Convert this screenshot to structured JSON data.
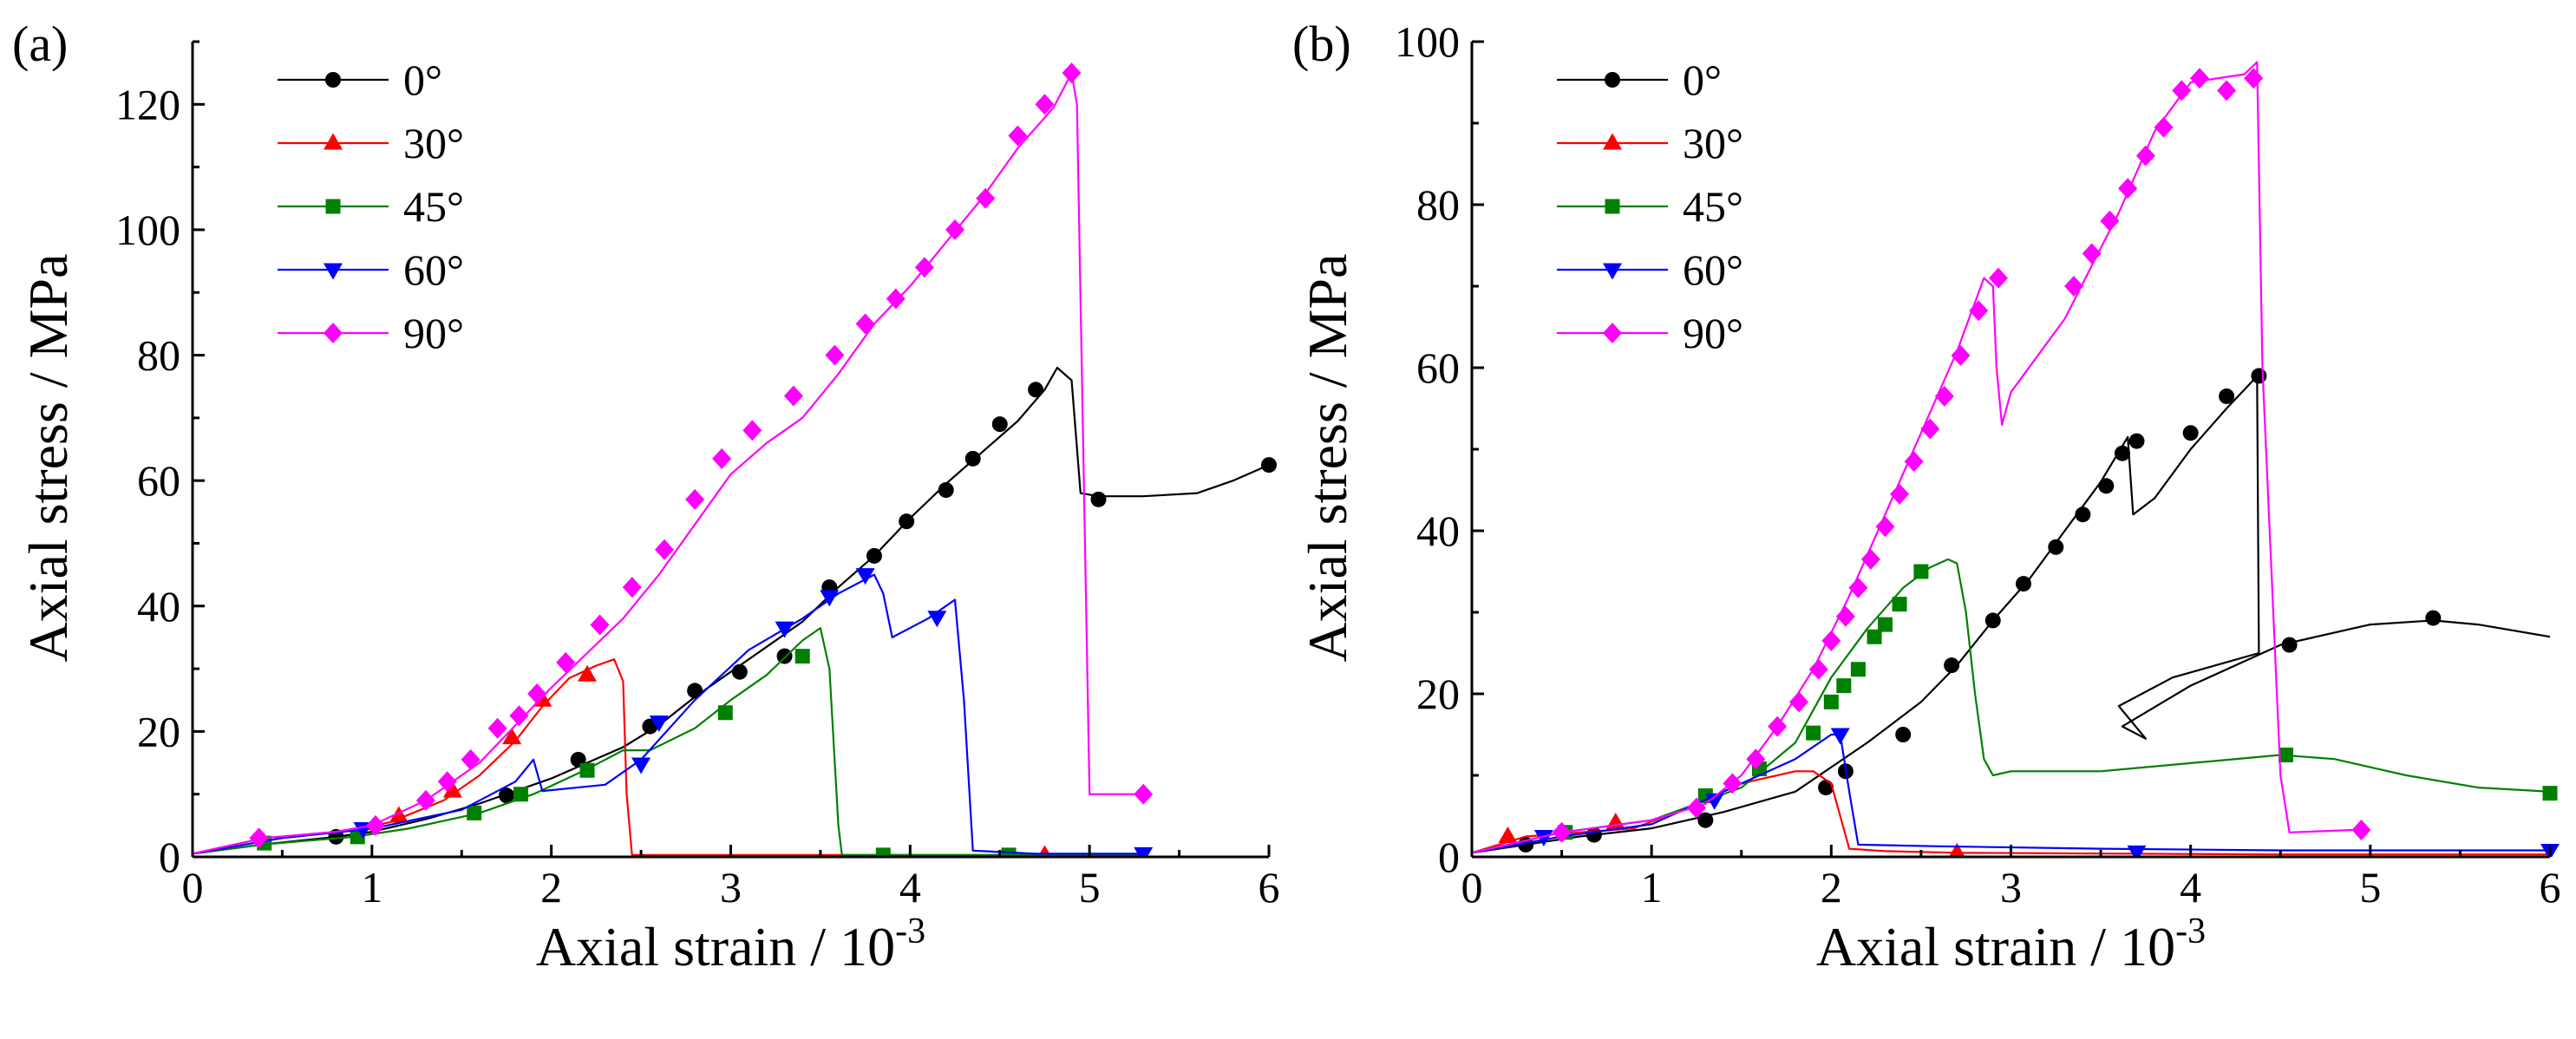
{
  "chart_data": [
    {
      "panel_label": "(a)",
      "type": "line",
      "xlabel": "Axial strain / 10",
      "xlabel_exp": "-3",
      "ylabel": "Axial stress / MPa",
      "xlim": [
        0,
        6
      ],
      "ylim": [
        0,
        130
      ],
      "xticks": [
        "0",
        "1",
        "2",
        "3",
        "4",
        "5",
        "6"
      ],
      "xtick_values": [
        0,
        1,
        2,
        3,
        4,
        5,
        6
      ],
      "yticks": [
        "0",
        "20",
        "40",
        "60",
        "80",
        "100",
        "120"
      ],
      "ytick_values": [
        0,
        20,
        40,
        60,
        80,
        100,
        120
      ],
      "legend_position": "top-left",
      "series": [
        {
          "name": "0°",
          "color": "#000000",
          "marker": "circle",
          "x": [
            0,
            0.4,
            0.8,
            1.0,
            1.3,
            1.6,
            1.8,
            2.0,
            2.2,
            2.4,
            2.6,
            2.8,
            3.0,
            3.2,
            3.4,
            3.6,
            3.8,
            4.0,
            4.2,
            4.4,
            4.6,
            4.75,
            4.82,
            4.9,
            4.95,
            5.05,
            5.3,
            5.6,
            5.8,
            6.0
          ],
          "y": [
            0.5,
            2.0,
            3.2,
            4.0,
            6.0,
            8.5,
            10.5,
            12.5,
            15.0,
            17.5,
            21.0,
            25.5,
            29.5,
            33.5,
            37.5,
            43.0,
            48.0,
            54.0,
            59.5,
            64.5,
            69.5,
            74.5,
            78.0,
            76.0,
            58.0,
            57.5,
            57.5,
            58.0,
            60.0,
            62.5
          ],
          "marker_x": [
            0.8,
            1.75,
            2.15,
            2.55,
            2.8,
            3.05,
            3.3,
            3.55,
            3.8,
            3.98,
            4.2,
            4.35,
            4.5,
            4.7,
            5.05,
            6.0
          ],
          "marker_y": [
            3.2,
            9.8,
            15.5,
            20.8,
            26.5,
            29.5,
            32.0,
            43.0,
            48.0,
            53.5,
            58.5,
            63.5,
            69.0,
            74.5,
            57.0,
            62.5
          ]
        },
        {
          "name": "30°",
          "color": "#ff0000",
          "marker": "triangle-up",
          "x": [
            0,
            0.4,
            0.8,
            1.1,
            1.4,
            1.6,
            1.8,
            1.95,
            2.1,
            2.25,
            2.35,
            2.4,
            2.42,
            2.45,
            3.0,
            4.0,
            4.75
          ],
          "y": [
            0.5,
            3.0,
            4.0,
            5.5,
            9.0,
            13.0,
            18.5,
            24.0,
            28.5,
            30.5,
            31.5,
            28.0,
            10.0,
            0.3,
            0.3,
            0.3,
            0.3
          ],
          "marker_x": [
            1.15,
            1.45,
            1.78,
            1.95,
            2.2,
            4.75
          ],
          "marker_y": [
            6.5,
            10.5,
            19.0,
            25.0,
            29.0,
            0.3
          ]
        },
        {
          "name": "45°",
          "color": "#008000",
          "marker": "square",
          "x": [
            0,
            0.4,
            0.9,
            1.2,
            1.6,
            1.9,
            2.2,
            2.4,
            2.55,
            2.8,
            3.0,
            3.2,
            3.4,
            3.5,
            3.55,
            3.6,
            3.62,
            4.0,
            4.5,
            5.3
          ],
          "y": [
            0.5,
            2.0,
            3.2,
            4.5,
            7.0,
            10.0,
            14.0,
            17.0,
            17.0,
            20.5,
            25.0,
            29.0,
            34.5,
            36.5,
            30.0,
            5.0,
            0.3,
            0.3,
            0.3,
            0.3
          ],
          "marker_x": [
            0.4,
            0.92,
            1.57,
            1.83,
            2.2,
            2.97,
            3.4,
            3.85,
            4.55
          ],
          "marker_y": [
            2.2,
            3.2,
            7.0,
            10.0,
            13.8,
            23.0,
            32.0,
            0.3,
            0.3
          ]
        },
        {
          "name": "60°",
          "color": "#0000ff",
          "marker": "triangle-down",
          "x": [
            0,
            0.5,
            1.0,
            1.5,
            1.8,
            1.9,
            1.95,
            2.3,
            2.5,
            2.8,
            3.1,
            3.4,
            3.6,
            3.8,
            3.85,
            3.9,
            4.1,
            4.25,
            4.3,
            4.35,
            4.7,
            5.3
          ],
          "y": [
            0.5,
            3.0,
            4.5,
            7.5,
            12.0,
            15.5,
            10.5,
            11.5,
            15.5,
            25.0,
            33.0,
            38.0,
            42.0,
            45.0,
            42.0,
            35.0,
            38.0,
            41.0,
            25.0,
            1.0,
            0.5,
            0.5
          ],
          "marker_x": [
            0.95,
            2.5,
            2.6,
            3.3,
            3.55,
            3.75,
            4.15,
            5.3
          ],
          "marker_y": [
            4.5,
            14.8,
            21.5,
            36.5,
            41.5,
            45.0,
            38.2,
            0.5
          ]
        },
        {
          "name": "90°",
          "color": "#ff00ff",
          "marker": "diamond",
          "x": [
            0,
            0.4,
            0.8,
            1.0,
            1.3,
            1.6,
            1.8,
            2.0,
            2.2,
            2.4,
            2.6,
            2.8,
            3.0,
            3.2,
            3.4,
            3.6,
            3.8,
            4.0,
            4.2,
            4.4,
            4.6,
            4.8,
            4.9,
            4.93,
            5.0,
            5.3
          ],
          "y": [
            0.5,
            3.0,
            4.0,
            5.0,
            9.0,
            15.0,
            21.0,
            27.0,
            32.5,
            38.0,
            45.0,
            53.0,
            61.0,
            66.0,
            70.0,
            77.0,
            85.0,
            91.0,
            98.0,
            105.0,
            113.0,
            119.5,
            125.0,
            120.0,
            10.0,
            10.0
          ],
          "marker_x": [
            0.37,
            1.02,
            1.3,
            1.42,
            1.55,
            1.7,
            1.82,
            1.92,
            2.08,
            2.27,
            2.45,
            2.63,
            2.8,
            2.95,
            3.12,
            3.35,
            3.58,
            3.75,
            3.92,
            4.08,
            4.25,
            4.42,
            4.6,
            4.75,
            4.9,
            5.3
          ],
          "marker_y": [
            3.0,
            5.0,
            9.0,
            12.0,
            15.5,
            20.5,
            22.5,
            26.0,
            31.0,
            37.0,
            43.0,
            49.0,
            57.0,
            63.5,
            68.0,
            73.5,
            80.0,
            85.0,
            89.0,
            94.0,
            100.0,
            105.0,
            115.0,
            120.0,
            125.0,
            10.0
          ]
        }
      ]
    },
    {
      "panel_label": "(b)",
      "type": "line",
      "xlabel": "Axial strain / 10",
      "xlabel_exp": "-3",
      "ylabel": "Axial stress / MPa",
      "xlim": [
        0,
        6
      ],
      "ylim": [
        0,
        100
      ],
      "xticks": [
        "0",
        "1",
        "2",
        "3",
        "4",
        "5",
        "6"
      ],
      "xtick_values": [
        0,
        1,
        2,
        3,
        4,
        5,
        6
      ],
      "yticks": [
        "0",
        "20",
        "40",
        "60",
        "80",
        "100"
      ],
      "ytick_values": [
        0,
        20,
        40,
        60,
        80,
        100
      ],
      "legend_position": "top-left",
      "series": [
        {
          "name": "0°",
          "color": "#000000",
          "marker": "circle",
          "x": [
            0,
            0.3,
            0.6,
            1.0,
            1.4,
            1.8,
            2.0,
            2.2,
            2.5,
            2.7,
            2.9,
            3.1,
            3.3,
            3.5,
            3.65,
            3.68,
            3.8,
            4.0,
            4.2,
            4.35,
            4.37,
            4.38,
            3.9,
            3.6,
            3.75,
            3.62,
            4.0,
            4.5,
            5.0,
            5.35,
            5.6,
            6.0
          ],
          "y": [
            0.5,
            1.5,
            2.5,
            3.5,
            5.5,
            8.0,
            11.0,
            14.0,
            19.0,
            23.5,
            29.0,
            34.0,
            40.0,
            46.0,
            51.5,
            42.0,
            44.0,
            50.0,
            55.0,
            58.5,
            59.0,
            25.0,
            22.0,
            18.5,
            14.5,
            16.0,
            21.0,
            26.0,
            28.5,
            29.0,
            28.5,
            27.0
          ],
          "marker_x": [
            0.3,
            0.68,
            1.3,
            1.97,
            2.08,
            2.4,
            2.67,
            2.9,
            3.07,
            3.25,
            3.4,
            3.53,
            3.62,
            3.7,
            4.0,
            4.2,
            4.38,
            4.55,
            5.35
          ],
          "marker_y": [
            1.5,
            2.7,
            4.5,
            8.5,
            10.5,
            15.0,
            23.5,
            29.0,
            33.5,
            38.0,
            42.0,
            45.5,
            49.5,
            51.0,
            52.0,
            56.5,
            59.0,
            26.0,
            29.3
          ]
        },
        {
          "name": "30°",
          "color": "#ff0000",
          "marker": "triangle-up",
          "x": [
            0,
            0.3,
            0.6,
            0.9,
            1.2,
            1.5,
            1.8,
            1.9,
            2.0,
            2.05,
            2.1,
            2.3,
            2.7,
            3.5,
            4.5,
            6.0
          ],
          "y": [
            0.5,
            2.5,
            3.0,
            3.5,
            6.0,
            9.0,
            10.5,
            10.5,
            9.0,
            5.0,
            1.0,
            0.7,
            0.5,
            0.4,
            0.3,
            0.3
          ],
          "marker_x": [
            0.2,
            0.8,
            2.7
          ],
          "marker_y": [
            2.5,
            4.2,
            0.5
          ]
        },
        {
          "name": "45°",
          "color": "#008000",
          "marker": "square",
          "x": [
            0,
            0.5,
            1.0,
            1.5,
            1.8,
            2.0,
            2.2,
            2.4,
            2.55,
            2.65,
            2.7,
            2.75,
            2.8,
            2.85,
            2.9,
            3.0,
            3.5,
            4.0,
            4.5,
            4.8,
            5.2,
            5.6,
            6.0
          ],
          "y": [
            0.5,
            3.0,
            4.5,
            8.5,
            14.0,
            22.0,
            28.0,
            33.0,
            35.5,
            36.5,
            36.0,
            30.0,
            20.0,
            12.0,
            10.0,
            10.5,
            10.5,
            11.5,
            12.5,
            12.0,
            10.0,
            8.5,
            8.0
          ],
          "marker_x": [
            0.52,
            1.3,
            1.6,
            1.9,
            2.0,
            2.07,
            2.15,
            2.24,
            2.3,
            2.38,
            2.5,
            4.53,
            6.0
          ],
          "marker_y": [
            3.0,
            7.5,
            10.8,
            15.2,
            19.0,
            21.0,
            23.0,
            27.0,
            28.5,
            31.0,
            35.0,
            12.5,
            7.8
          ]
        },
        {
          "name": "60°",
          "color": "#0000ff",
          "marker": "triangle-down",
          "x": [
            0,
            0.5,
            1.0,
            1.5,
            1.8,
            2.0,
            2.05,
            2.1,
            2.15,
            2.6,
            3.5,
            4.5,
            6.0
          ],
          "y": [
            0.5,
            2.5,
            4.0,
            9.0,
            12.0,
            15.0,
            15.0,
            8.0,
            1.5,
            1.3,
            1.0,
            0.8,
            0.8
          ],
          "marker_x": [
            0.4,
            1.35,
            2.05,
            3.7,
            6.0
          ],
          "marker_y": [
            2.5,
            7.0,
            15.0,
            0.6,
            0.8
          ]
        },
        {
          "name": "90°",
          "color": "#ff00ff",
          "marker": "diamond",
          "x": [
            0,
            0.5,
            1.0,
            1.3,
            1.5,
            1.7,
            1.9,
            2.1,
            2.3,
            2.5,
            2.7,
            2.85,
            2.9,
            2.92,
            2.95,
            3.0,
            3.3,
            3.6,
            3.8,
            4.0,
            4.3,
            4.37,
            4.4,
            4.5,
            4.55,
            4.9
          ],
          "y": [
            0.5,
            3.0,
            4.5,
            6.5,
            10.0,
            16.0,
            23.0,
            32.0,
            42.0,
            52.0,
            62.0,
            71.0,
            70.0,
            60.0,
            53.0,
            57.0,
            66.0,
            79.0,
            89.0,
            95.0,
            96.0,
            97.5,
            60.0,
            10.0,
            3.0,
            3.3
          ],
          "marker_x": [
            0.5,
            1.25,
            1.45,
            1.58,
            1.7,
            1.82,
            1.93,
            2.0,
            2.08,
            2.15,
            2.22,
            2.3,
            2.38,
            2.46,
            2.55,
            2.63,
            2.72,
            2.82,
            2.93,
            3.35,
            3.45,
            3.55,
            3.65,
            3.75,
            3.85,
            3.95,
            4.05,
            4.2,
            4.35,
            4.95
          ],
          "marker_y": [
            3.0,
            6.0,
            9.0,
            12.0,
            16.0,
            19.0,
            23.0,
            26.5,
            29.5,
            33.0,
            36.5,
            40.5,
            44.5,
            48.5,
            52.5,
            56.5,
            61.5,
            67.0,
            71.0,
            70.0,
            74.0,
            78.0,
            82.0,
            86.0,
            89.5,
            94.0,
            95.5,
            94.0,
            95.5,
            3.3
          ]
        }
      ]
    }
  ]
}
